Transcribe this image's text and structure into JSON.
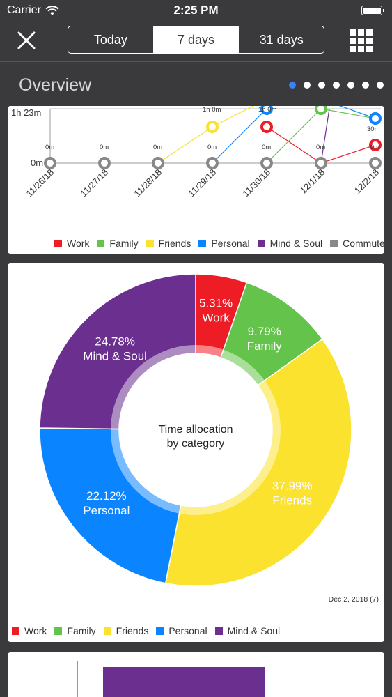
{
  "status_bar": {
    "carrier": "Carrier",
    "time": "2:25 PM",
    "battery_level": 1.0
  },
  "nav": {
    "tabs": [
      {
        "label": "Today",
        "selected": false
      },
      {
        "label": "7 days",
        "selected": true
      },
      {
        "label": "31 days",
        "selected": false
      }
    ]
  },
  "overview": {
    "title": "Overview",
    "page_count": 7,
    "active_page": 0
  },
  "colors": {
    "Work": "#ee1c24",
    "Family": "#63c34a",
    "Friends": "#fbe22f",
    "Personal": "#0a84ff",
    "Mind & Soul": "#6b2f8f",
    "Commute": "#888888"
  },
  "line_chart": {
    "y_tick_labels": [
      "1h 23m",
      "0m"
    ],
    "dates": [
      "11/26/18",
      "11/27/18",
      "11/28/18",
      "11/29/18",
      "11/30/18",
      "12/1/18",
      "12/2/18"
    ],
    "point_labels": [
      "0m",
      "0m",
      "0m",
      "0m",
      "0m",
      "0m",
      "0m"
    ],
    "upper_labels": [
      "1h 0m",
      "1h 0m",
      "30m"
    ],
    "legend": [
      "Work",
      "Family",
      "Friends",
      "Personal",
      "Mind & Soul",
      "Commute"
    ]
  },
  "chart_data": {
    "type": "pie",
    "title": "Time allocation by category",
    "categories": [
      "Work",
      "Family",
      "Friends",
      "Personal",
      "Mind & Soul"
    ],
    "values": [
      5.31,
      9.79,
      37.99,
      22.12,
      24.78
    ],
    "value_labels": [
      "5.31%",
      "9.79%",
      "37.99%",
      "22.12%",
      "24.78%"
    ],
    "legend_position": "bottom-left"
  },
  "pie_card": {
    "center_title_line1": "Time allocation",
    "center_title_line2": "by category",
    "date_note": "Dec 2, 2018 (7)",
    "legend": [
      "Work",
      "Family",
      "Friends",
      "Personal",
      "Mind & Soul"
    ]
  }
}
